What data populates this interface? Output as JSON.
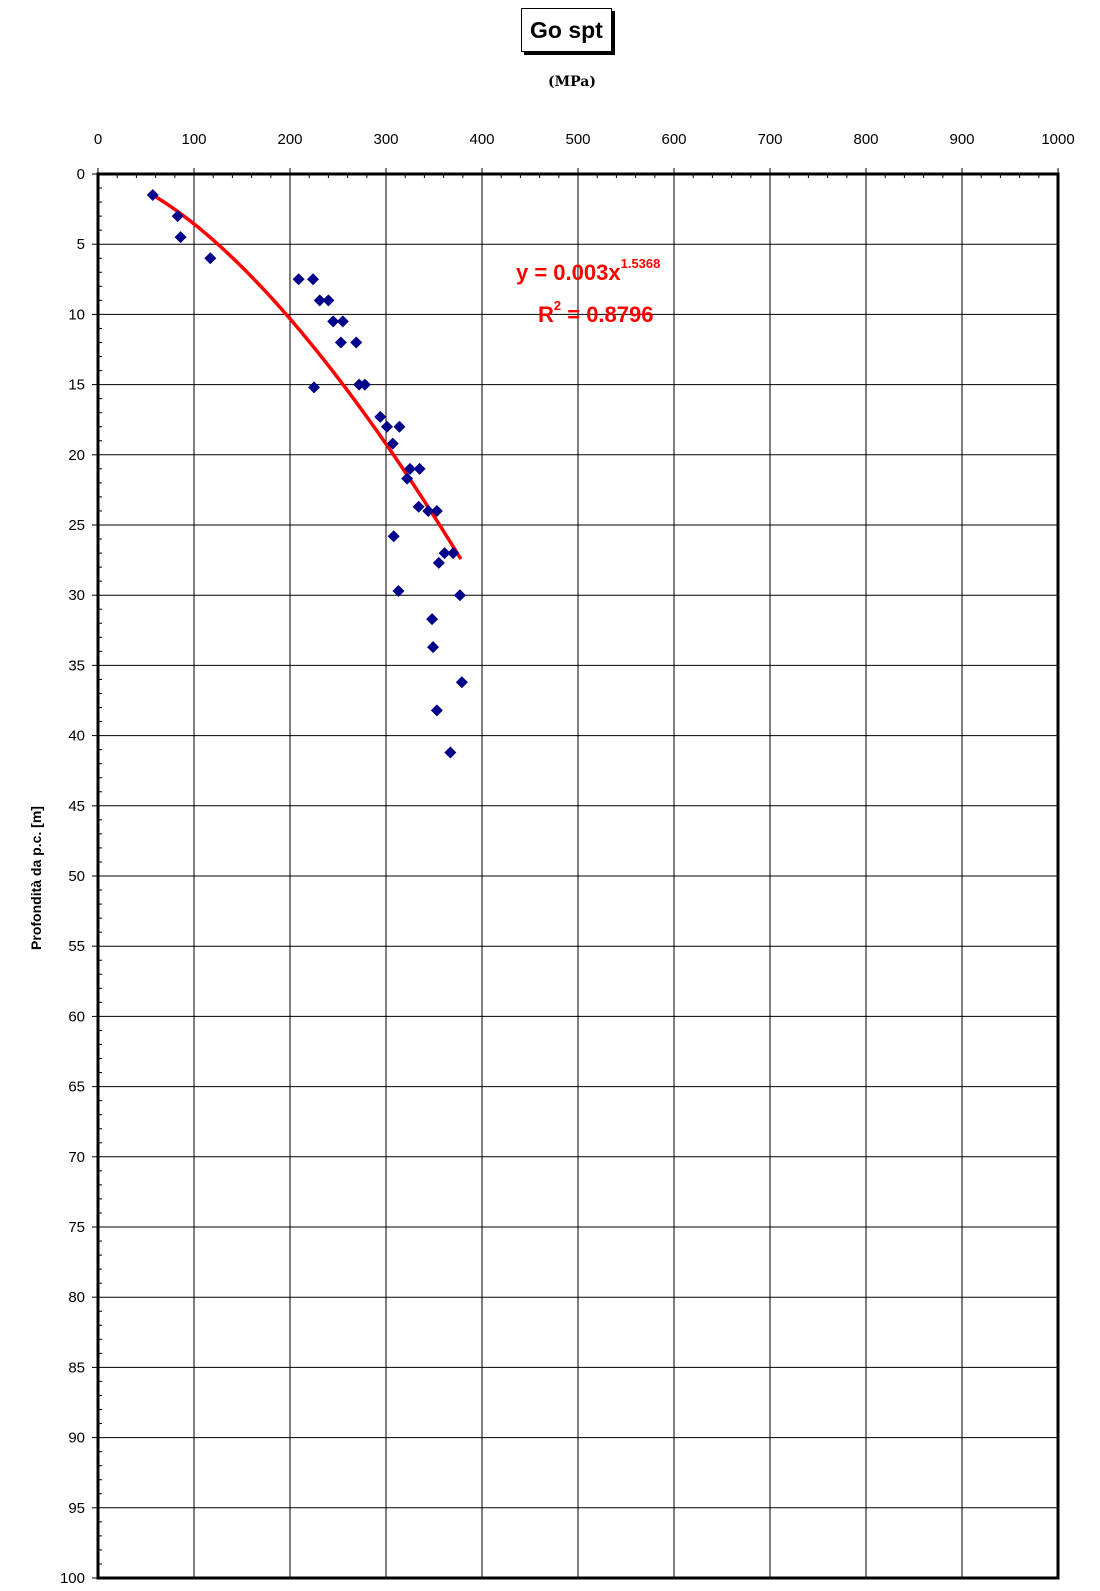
{
  "chart_data": {
    "type": "scatter",
    "title": "Go spt",
    "xlabel": "(MPa)",
    "ylabel": "Profondità da p.c. [m]",
    "xlim": [
      0,
      1000
    ],
    "ylim": [
      0,
      100
    ],
    "y_inverted": true,
    "x_axis_position": "top",
    "grid": true,
    "x_ticks": [
      0,
      100,
      200,
      300,
      400,
      500,
      600,
      700,
      800,
      900,
      1000
    ],
    "y_ticks": [
      0,
      5,
      10,
      15,
      20,
      25,
      30,
      35,
      40,
      45,
      50,
      55,
      60,
      65,
      70,
      75,
      80,
      85,
      90,
      95,
      100
    ],
    "series": [
      {
        "marker": "diamond",
        "color": "#00008b",
        "points": [
          [
            57,
            1.5
          ],
          [
            83,
            3
          ],
          [
            86,
            4.5
          ],
          [
            117,
            6
          ],
          [
            209,
            7.5
          ],
          [
            224,
            7.5
          ],
          [
            231,
            9
          ],
          [
            240,
            9
          ],
          [
            245,
            10.5
          ],
          [
            255,
            10.5
          ],
          [
            253,
            12
          ],
          [
            269,
            12
          ],
          [
            272,
            15
          ],
          [
            278,
            15
          ],
          [
            225,
            15.2
          ],
          [
            294,
            17.3
          ],
          [
            301,
            18
          ],
          [
            314,
            18
          ],
          [
            307,
            19.2
          ],
          [
            325,
            21
          ],
          [
            335,
            21
          ],
          [
            322,
            21.7
          ],
          [
            334,
            23.7
          ],
          [
            344,
            24
          ],
          [
            353,
            24
          ],
          [
            308,
            25.8
          ],
          [
            361,
            27
          ],
          [
            370,
            27
          ],
          [
            355,
            27.7
          ],
          [
            313,
            29.7
          ],
          [
            377,
            30
          ],
          [
            348,
            31.7
          ],
          [
            349,
            33.7
          ],
          [
            379,
            36.2
          ],
          [
            353,
            38.2
          ],
          [
            367,
            41.2
          ]
        ]
      }
    ],
    "trendline": {
      "type": "power",
      "color": "#ff0000",
      "coef": 0.003,
      "exponent": 1.5368,
      "x_range": [
        57,
        378
      ],
      "equation_main": "y = 0.003x",
      "equation_exponent": "1.5368",
      "r2_prefix": "R",
      "r2_sup": "2",
      "r2_suffix": " = 0.8796"
    }
  }
}
